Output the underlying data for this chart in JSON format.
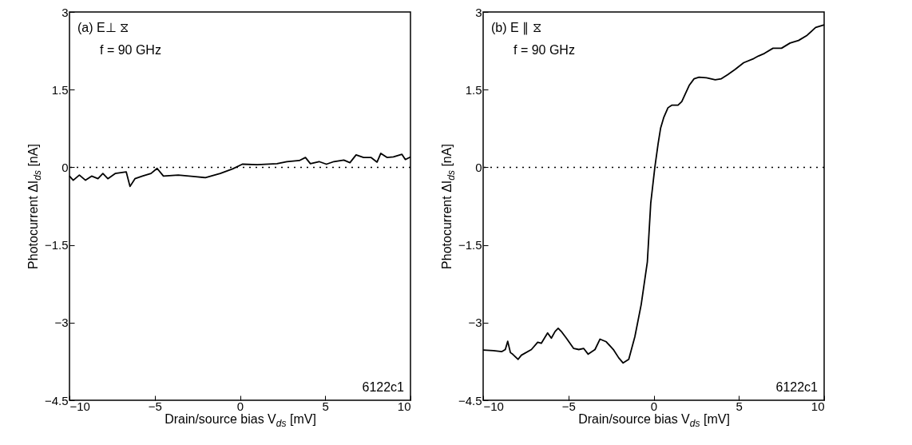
{
  "chart_data": [
    {
      "type": "line",
      "xlabel": "Drain/source bias V$_{ds}$ [mV]",
      "ylabel": "Photocurrent ΔI$_{ds}$ [nA]",
      "xlim": [
        -10,
        10
      ],
      "ylim": [
        -4.5,
        3
      ],
      "xticks": [
        -10,
        -5,
        0,
        5,
        10
      ],
      "yticks": [
        -4.5,
        -3,
        -1.5,
        0,
        1.5,
        3
      ],
      "annotations": [
        "(a) E⊥ ⧖",
        "f = 90 GHz",
        "6122c1"
      ],
      "ref_lines": [
        {
          "axis": "y",
          "value": 0,
          "line_style": "dotted"
        }
      ],
      "series": [
        {
          "color": "#000000",
          "x": [
            -10,
            -9.78,
            -9.42,
            -9.06,
            -8.7,
            -8.33,
            -8.04,
            -7.75,
            -7.32,
            -6.67,
            -6.45,
            -6.16,
            -5.72,
            -5.22,
            -4.86,
            -4.49,
            -3.62,
            -2.61,
            -2.03,
            -1.16,
            -0.43,
            0.14,
            1.01,
            2.17,
            2.75,
            3.48,
            3.84,
            4.13,
            4.64,
            5.07,
            5.51,
            6.09,
            6.45,
            6.81,
            7.25,
            7.68,
            8.04,
            8.26,
            8.62,
            9,
            9.5,
            9.7,
            10
          ],
          "values": [
            -0.17,
            -0.25,
            -0.15,
            -0.25,
            -0.17,
            -0.22,
            -0.12,
            -0.22,
            -0.12,
            -0.09,
            -0.37,
            -0.22,
            -0.17,
            -0.12,
            -0.02,
            -0.17,
            -0.15,
            -0.18,
            -0.2,
            -0.12,
            -0.03,
            0.06,
            0.05,
            0.07,
            0.11,
            0.13,
            0.19,
            0.07,
            0.11,
            0.06,
            0.11,
            0.14,
            0.09,
            0.24,
            0.19,
            0.19,
            0.1,
            0.27,
            0.19,
            0.2,
            0.25,
            0.15,
            0.2
          ]
        }
      ]
    },
    {
      "type": "line",
      "xlabel": "Drain/source bias V$_{ds}$ [mV]",
      "ylabel": "Photocurrent ΔI$_{ds}$ [nA]",
      "xlim": [
        -10,
        10
      ],
      "ylim": [
        -4.5,
        3
      ],
      "xticks": [
        -10,
        -5,
        0,
        5,
        10
      ],
      "yticks": [
        -4.5,
        -3,
        -1.5,
        0,
        1.5,
        3
      ],
      "annotations": [
        "(b) E ∥ ⧖",
        "f = 90 GHz",
        "6122c1"
      ],
      "ref_lines": [
        {
          "axis": "y",
          "value": 0,
          "line_style": "dotted"
        }
      ],
      "series": [
        {
          "color": "#000000",
          "x": [
            -10,
            -9.4,
            -8.9,
            -8.7,
            -8.56,
            -8.4,
            -8.27,
            -7.95,
            -7.76,
            -7.17,
            -6.8,
            -6.59,
            -6.22,
            -6.0,
            -5.78,
            -5.6,
            -5.42,
            -5.12,
            -4.69,
            -4.39,
            -4.1,
            -3.84,
            -3.44,
            -3.15,
            -2.78,
            -2.34,
            -2.05,
            -1.79,
            -1.46,
            -1.1,
            -0.73,
            -0.37,
            -0.17,
            0.07,
            0.26,
            0.41,
            0.6,
            0.84,
            1.06,
            1.43,
            1.65,
            2.08,
            2.37,
            2.66,
            3.1,
            3.61,
            3.97,
            4.34,
            4.77,
            5.28,
            5.87,
            6.15,
            6.5,
            7,
            7.5,
            8,
            8.5,
            9,
            9.5,
            10
          ],
          "values": [
            -3.53,
            -3.54,
            -3.56,
            -3.52,
            -3.36,
            -3.58,
            -3.61,
            -3.71,
            -3.63,
            -3.52,
            -3.38,
            -3.4,
            -3.2,
            -3.3,
            -3.17,
            -3.11,
            -3.17,
            -3.3,
            -3.5,
            -3.52,
            -3.5,
            -3.61,
            -3.52,
            -3.32,
            -3.37,
            -3.53,
            -3.68,
            -3.78,
            -3.71,
            -3.27,
            -2.65,
            -1.83,
            -0.69,
            0,
            0.45,
            0.76,
            0.97,
            1.15,
            1.2,
            1.2,
            1.27,
            1.58,
            1.71,
            1.74,
            1.73,
            1.69,
            1.71,
            1.79,
            1.89,
            2.02,
            2.1,
            2.15,
            2.2,
            2.3,
            2.3,
            2.4,
            2.45,
            2.55,
            2.7,
            2.75
          ]
        }
      ]
    }
  ]
}
